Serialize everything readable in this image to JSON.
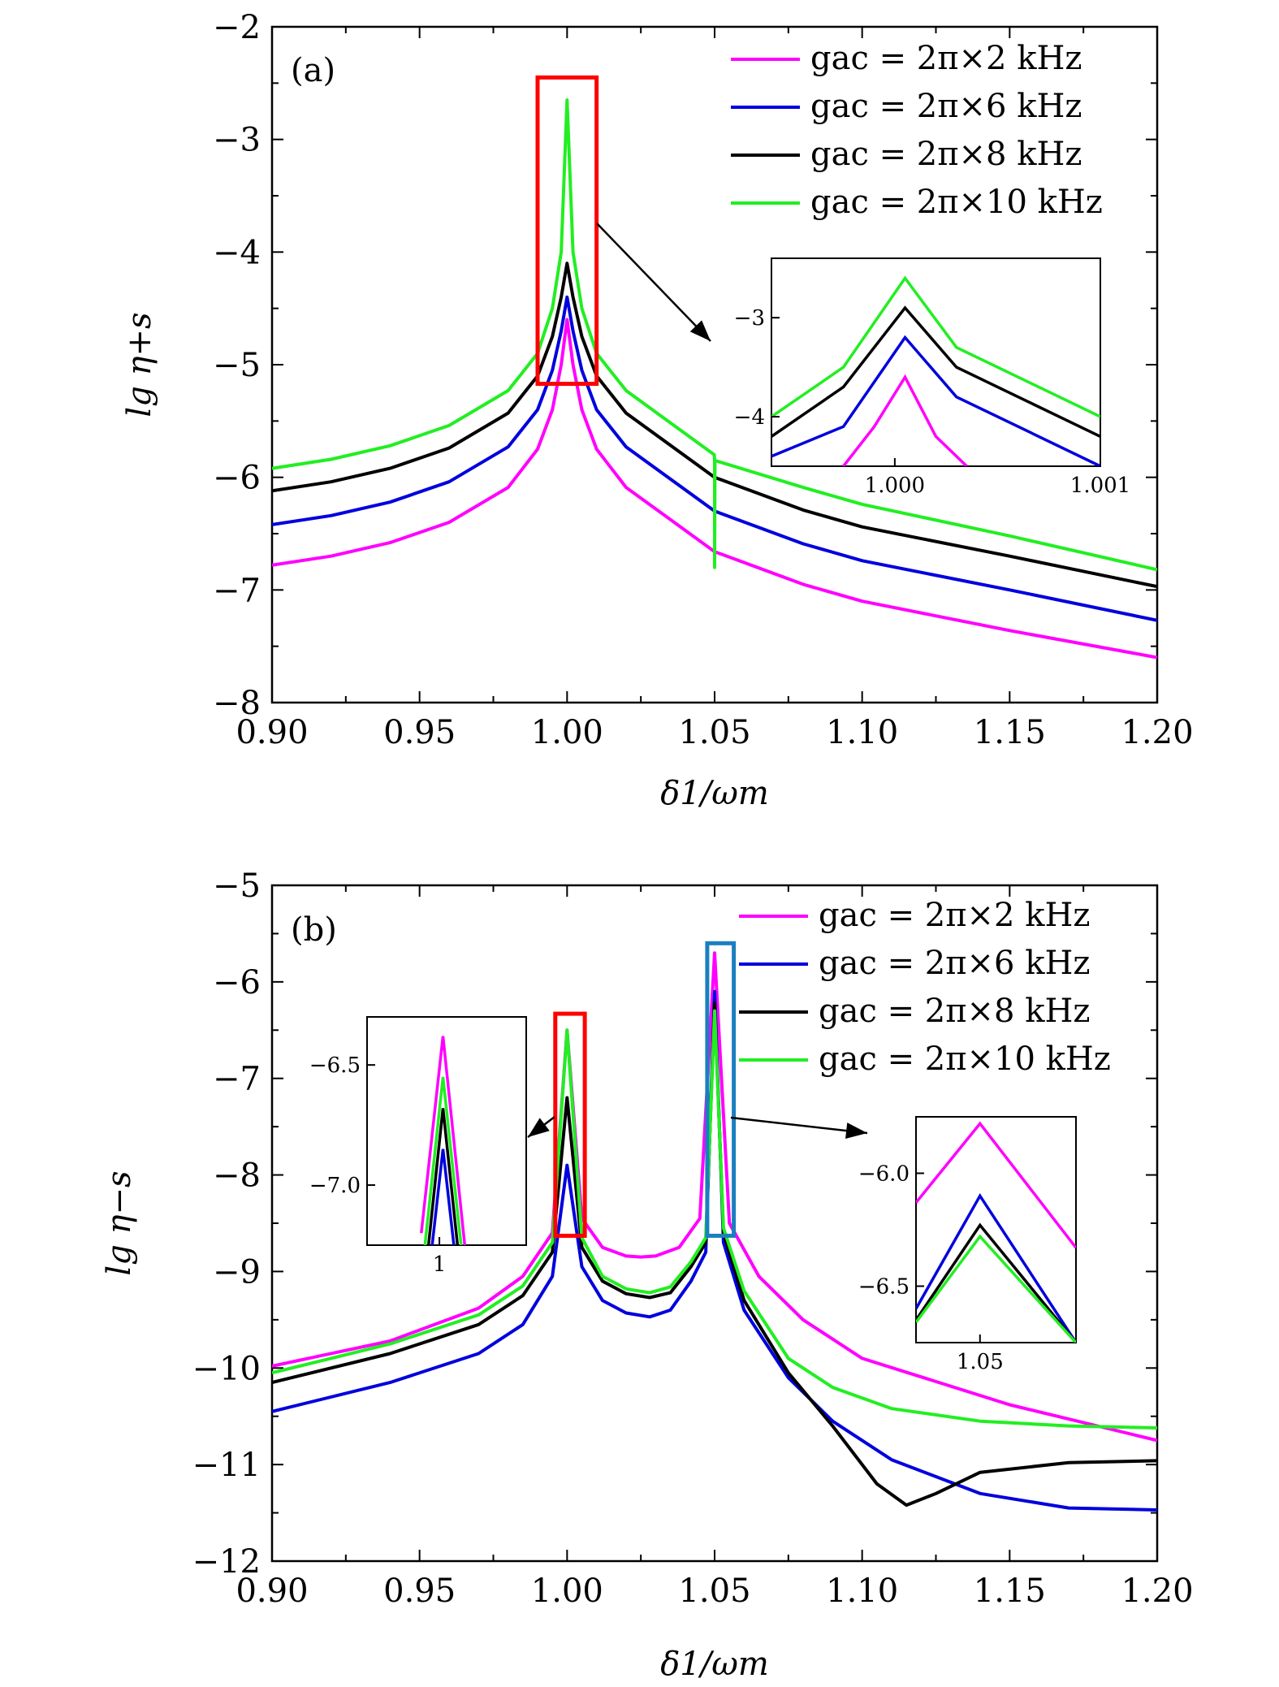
{
  "chart_data": [
    {
      "type": "line",
      "panel_label": "(a)",
      "xlabel": "δ1/ωm",
      "ylabel": "lg η+s",
      "xlim": [
        0.9,
        1.2
      ],
      "ylim": [
        -8,
        -2
      ],
      "xticks": [
        "0.90",
        "0.95",
        "1.00",
        "1.05",
        "1.10",
        "1.15",
        "1.20"
      ],
      "yticks": [
        "−2",
        "−3",
        "−4",
        "−5",
        "−6",
        "−7",
        "−8"
      ],
      "legend_position": "top-right",
      "series": [
        {
          "name": "gac = 2π×2 kHz",
          "color": "#ff00ff",
          "x": [
            0.9,
            0.92,
            0.94,
            0.96,
            0.98,
            0.99,
            0.995,
            0.998,
            1.0,
            1.002,
            1.005,
            1.01,
            1.02,
            1.05,
            1.08,
            1.1,
            1.15,
            1.2
          ],
          "y": [
            -6.78,
            -6.7,
            -6.58,
            -6.4,
            -6.09,
            -5.75,
            -5.4,
            -5.0,
            -4.6,
            -5.0,
            -5.4,
            -5.75,
            -6.09,
            -6.66,
            -6.95,
            -7.1,
            -7.36,
            -7.6
          ]
        },
        {
          "name": "gac = 2π×6 kHz",
          "color": "#0000dd",
          "x": [
            0.9,
            0.92,
            0.94,
            0.96,
            0.98,
            0.99,
            0.995,
            0.998,
            1.0,
            1.002,
            1.005,
            1.01,
            1.02,
            1.05,
            1.08,
            1.1,
            1.15,
            1.2
          ],
          "y": [
            -6.42,
            -6.34,
            -6.22,
            -6.04,
            -5.73,
            -5.4,
            -5.05,
            -4.7,
            -4.4,
            -4.7,
            -5.05,
            -5.4,
            -5.73,
            -6.3,
            -6.59,
            -6.74,
            -7.0,
            -7.27
          ]
        },
        {
          "name": "gac = 2π×8 kHz",
          "color": "#000000",
          "x": [
            0.9,
            0.92,
            0.94,
            0.96,
            0.98,
            0.99,
            0.995,
            0.998,
            1.0,
            1.002,
            1.005,
            1.01,
            1.02,
            1.05,
            1.08,
            1.1,
            1.15,
            1.2
          ],
          "y": [
            -6.12,
            -6.04,
            -5.92,
            -5.74,
            -5.43,
            -5.1,
            -4.75,
            -4.4,
            -4.1,
            -4.4,
            -4.75,
            -5.1,
            -5.43,
            -6.0,
            -6.29,
            -6.44,
            -6.7,
            -6.97
          ]
        },
        {
          "name": "gac = 2π×10 kHz",
          "color": "#22ee22",
          "x": [
            0.9,
            0.92,
            0.94,
            0.96,
            0.98,
            0.99,
            0.995,
            0.998,
            1.0,
            1.002,
            1.005,
            1.01,
            1.02,
            1.0499,
            1.05,
            1.05,
            1.0501,
            1.08,
            1.1,
            1.15,
            1.2
          ],
          "y": [
            -5.92,
            -5.84,
            -5.72,
            -5.54,
            -5.23,
            -4.9,
            -4.5,
            -4.0,
            -2.65,
            -4.0,
            -4.5,
            -4.9,
            -5.23,
            -5.8,
            -5.85,
            -6.8,
            -5.85,
            -6.09,
            -6.24,
            -6.52,
            -6.82
          ]
        }
      ],
      "annotation_box": {
        "x": [
          0.99,
          1.01
        ],
        "y": [
          -5.17,
          -2.45
        ],
        "color": "#ff0000"
      },
      "inset": {
        "xlim": [
          0.9994,
          1.001
        ],
        "ylim": [
          -4.5,
          -2.4
        ],
        "xticks": [
          "1.000",
          "1.001"
        ],
        "yticks": [
          "−3",
          "−4"
        ],
        "series": [
          {
            "color": "#ff00ff",
            "x": [
              0.99975,
              0.9999,
              1.00005,
              1.0002,
              1.00035
            ],
            "y": [
              -4.5,
              -4.1,
              -3.6,
              -4.2,
              -4.5
            ]
          },
          {
            "color": "#0000dd",
            "x": [
              0.9994,
              0.99975,
              1.00005,
              1.0003,
              1.0006,
              1.001
            ],
            "y": [
              -4.4,
              -4.1,
              -3.2,
              -3.8,
              -4.1,
              -4.5
            ]
          },
          {
            "color": "#000000",
            "x": [
              0.9994,
              0.99975,
              1.00005,
              1.0003,
              1.0006,
              1.001
            ],
            "y": [
              -4.2,
              -3.7,
              -2.9,
              -3.5,
              -3.8,
              -4.2
            ]
          },
          {
            "color": "#22ee22",
            "x": [
              0.9994,
              0.99975,
              1.00005,
              1.0003,
              1.0006,
              1.001
            ],
            "y": [
              -4.0,
              -3.5,
              -2.6,
              -3.3,
              -3.6,
              -4.0
            ]
          }
        ]
      }
    },
    {
      "type": "line",
      "panel_label": "(b)",
      "xlabel": "δ1/ωm",
      "ylabel": "lg η−s",
      "xlim": [
        0.9,
        1.2
      ],
      "ylim": [
        -12,
        -5
      ],
      "xticks": [
        "0.90",
        "0.95",
        "1.00",
        "1.05",
        "1.10",
        "1.15",
        "1.20"
      ],
      "yticks": [
        "−5",
        "−6",
        "−7",
        "−8",
        "−9",
        "−10",
        "−11",
        "−12"
      ],
      "legend_position": "top-right",
      "series": [
        {
          "name": "gac = 2π×2 kHz",
          "color": "#ff00ff",
          "x": [
            0.9,
            0.94,
            0.97,
            0.985,
            0.995,
            1.0,
            1.005,
            1.012,
            1.02,
            1.025,
            1.03,
            1.038,
            1.045,
            1.05,
            1.055,
            1.065,
            1.08,
            1.1,
            1.15,
            1.2
          ],
          "y": [
            -9.98,
            -9.72,
            -9.38,
            -9.05,
            -8.6,
            -6.5,
            -8.45,
            -8.75,
            -8.84,
            -8.85,
            -8.84,
            -8.75,
            -8.45,
            -5.7,
            -8.5,
            -9.05,
            -9.5,
            -9.9,
            -10.38,
            -10.75
          ]
        },
        {
          "name": "gac = 2π×6 kHz",
          "color": "#0000dd",
          "x": [
            0.9,
            0.94,
            0.97,
            0.985,
            0.995,
            1.0,
            1.005,
            1.012,
            1.02,
            1.028,
            1.035,
            1.042,
            1.047,
            1.05,
            1.053,
            1.06,
            1.075,
            1.09,
            1.11,
            1.14,
            1.17,
            1.2
          ],
          "y": [
            -10.45,
            -10.15,
            -9.85,
            -9.55,
            -9.05,
            -7.9,
            -8.95,
            -9.3,
            -9.43,
            -9.47,
            -9.4,
            -9.1,
            -8.8,
            -6.1,
            -8.7,
            -9.4,
            -10.1,
            -10.55,
            -10.95,
            -11.3,
            -11.45,
            -11.47
          ]
        },
        {
          "name": "gac = 2π×8 kHz",
          "color": "#000000",
          "x": [
            0.9,
            0.94,
            0.97,
            0.985,
            0.995,
            1.0,
            1.005,
            1.012,
            1.02,
            1.028,
            1.035,
            1.042,
            1.047,
            1.05,
            1.053,
            1.06,
            1.075,
            1.09,
            1.105,
            1.115,
            1.125,
            1.14,
            1.17,
            1.2
          ],
          "y": [
            -10.15,
            -9.85,
            -9.55,
            -9.25,
            -8.8,
            -7.2,
            -8.75,
            -9.1,
            -9.23,
            -9.27,
            -9.22,
            -8.95,
            -8.7,
            -6.22,
            -8.6,
            -9.3,
            -10.05,
            -10.6,
            -11.2,
            -11.42,
            -11.3,
            -11.08,
            -10.98,
            -10.96
          ]
        },
        {
          "name": "gac = 2π×10 kHz",
          "color": "#22ee22",
          "x": [
            0.9,
            0.94,
            0.97,
            0.985,
            0.995,
            1.0,
            1.005,
            1.012,
            1.02,
            1.028,
            1.035,
            1.042,
            1.047,
            1.05,
            1.053,
            1.06,
            1.075,
            1.09,
            1.11,
            1.14,
            1.17,
            1.2
          ],
          "y": [
            -10.05,
            -9.75,
            -9.45,
            -9.15,
            -8.7,
            -6.5,
            -8.65,
            -9.05,
            -9.18,
            -9.22,
            -9.16,
            -8.9,
            -8.65,
            -6.3,
            -8.55,
            -9.2,
            -9.9,
            -10.2,
            -10.42,
            -10.55,
            -10.6,
            -10.62
          ]
        }
      ],
      "annotation_boxes": [
        {
          "x": [
            0.996,
            1.006
          ],
          "y": [
            -8.63,
            -6.33
          ],
          "color": "#ff0000"
        },
        {
          "x": [
            1.0475,
            1.0565
          ],
          "y": [
            -8.63,
            -5.6
          ],
          "color": "#1a7fc0"
        }
      ],
      "insets": [
        {
          "xlim": [
            0.999,
            1.0012
          ],
          "ylim": [
            -7.25,
            -6.3
          ],
          "xticks": [
            "1"
          ],
          "yticks": [
            "−6.5",
            "−7.0"
          ],
          "series": [
            {
              "color": "#ff00ff",
              "x": [
                0.99975,
                1.00005,
                1.00035
              ],
              "y": [
                -7.2,
                -6.38,
                -7.25
              ]
            },
            {
              "color": "#22ee22",
              "x": [
                0.9998,
                1.00005,
                1.0003
              ],
              "y": [
                -7.25,
                -6.55,
                -7.25
              ]
            },
            {
              "color": "#000000",
              "x": [
                0.99985,
                1.00005,
                1.00025
              ],
              "y": [
                -7.25,
                -6.68,
                -7.25
              ]
            },
            {
              "color": "#0000dd",
              "x": [
                0.9999,
                1.00005,
                1.0002
              ],
              "y": [
                -7.25,
                -6.85,
                -7.25
              ]
            }
          ]
        },
        {
          "xlim": [
            1.049,
            1.0515
          ],
          "ylim": [
            -6.75,
            -5.75
          ],
          "xticks": [
            "1.05"
          ],
          "yticks": [
            "−6.0",
            "−6.5"
          ],
          "series": [
            {
              "color": "#ff00ff",
              "x": [
                1.049,
                1.05,
                1.0515
              ],
              "y": [
                -6.13,
                -5.78,
                -6.33
              ]
            },
            {
              "color": "#0000dd",
              "x": [
                1.049,
                1.05,
                1.0515
              ],
              "y": [
                -6.6,
                -6.1,
                -6.75
              ]
            },
            {
              "color": "#000000",
              "x": [
                1.049,
                1.05,
                1.0515
              ],
              "y": [
                -6.65,
                -6.23,
                -6.75
              ]
            },
            {
              "color": "#22ee22",
              "x": [
                1.049,
                1.05,
                1.0515
              ],
              "y": [
                -6.66,
                -6.28,
                -6.75
              ]
            }
          ]
        }
      ]
    }
  ]
}
